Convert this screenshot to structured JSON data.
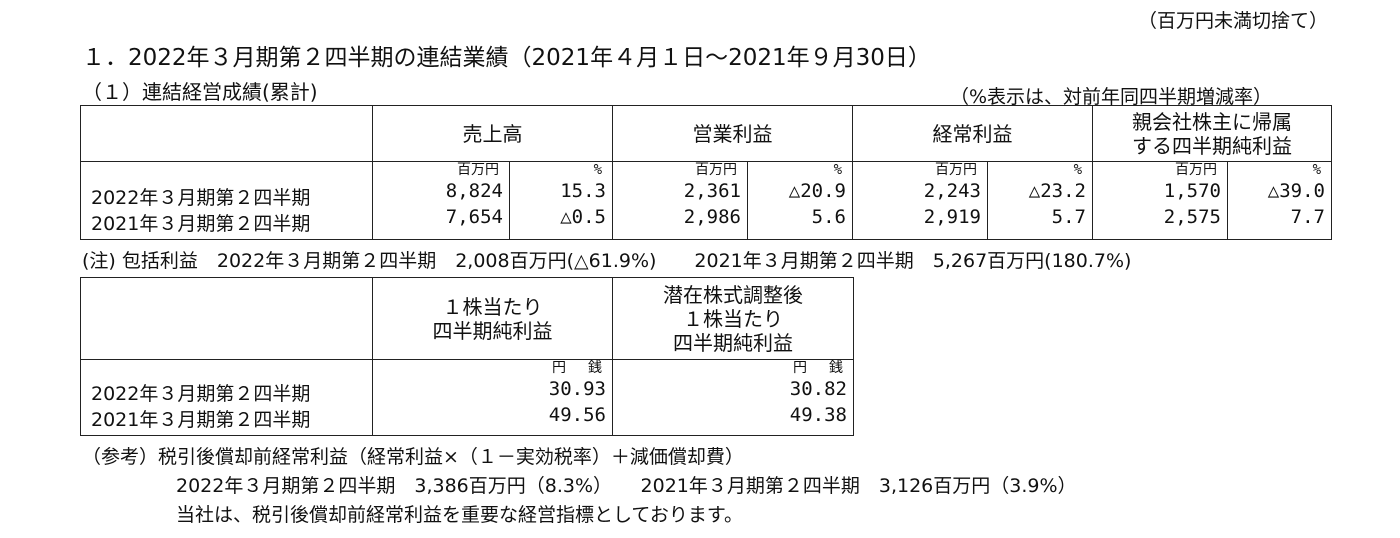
{
  "rounding_note": "（百万円未満切捨て）",
  "section_title": "１．2022年３月期第２四半期の連結業績（2021年４月１日～2021年９月30日）",
  "subsection_title": "（１）連結経営成績(累計)",
  "pct_note": "（%表示は、対前年同四半期増減率）",
  "table1": {
    "headers": {
      "sales": "売上高",
      "operating": "営業利益",
      "ordinary": "経常利益",
      "net_line1": "親会社株主に帰属",
      "net_line2": "する四半期純利益"
    },
    "units": {
      "amount": "百万円",
      "pct": "%"
    },
    "rows": [
      {
        "label": "2022年３月期第２四半期",
        "sales": "8,824",
        "sales_pct": "15.3",
        "op": "2,361",
        "op_pct": "△20.9",
        "ord": "2,243",
        "ord_pct": "△23.2",
        "net": "1,570",
        "net_pct": "△39.0"
      },
      {
        "label": "2021年３月期第２四半期",
        "sales": "7,654",
        "sales_pct": "△0.5",
        "op": "2,986",
        "op_pct": "5.6",
        "ord": "2,919",
        "ord_pct": "5.7",
        "net": "2,575",
        "net_pct": "7.7"
      }
    ]
  },
  "comprehensive_note": "(注) 包括利益　2022年３月期第２四半期　2,008百万円(△61.9%)　　2021年３月期第２四半期　5,267百万円(180.7%)",
  "table2": {
    "headers": {
      "eps_line1": "１株当たり",
      "eps_line2": "四半期純利益",
      "diluted_line1": "潜在株式調整後",
      "diluted_line2": "１株当たり",
      "diluted_line3": "四半期純利益"
    },
    "units": {
      "yen": "円",
      "sen": "銭"
    },
    "rows": [
      {
        "label": "2022年３月期第２四半期",
        "eps": "30.93",
        "diluted": "30.82"
      },
      {
        "label": "2021年３月期第２四半期",
        "eps": "49.56",
        "diluted": "49.38"
      }
    ]
  },
  "reference": {
    "line1": "（参考）税引後償却前経常利益（経常利益×（１－実効税率）＋減価償却費）",
    "line2": "2022年３月期第２四半期　3,386百万円（8.3%）　　2021年３月期第２四半期　3,126百万円（3.9%）",
    "line3": "当社は、税引後償却前経常利益を重要な経営指標としております。"
  }
}
